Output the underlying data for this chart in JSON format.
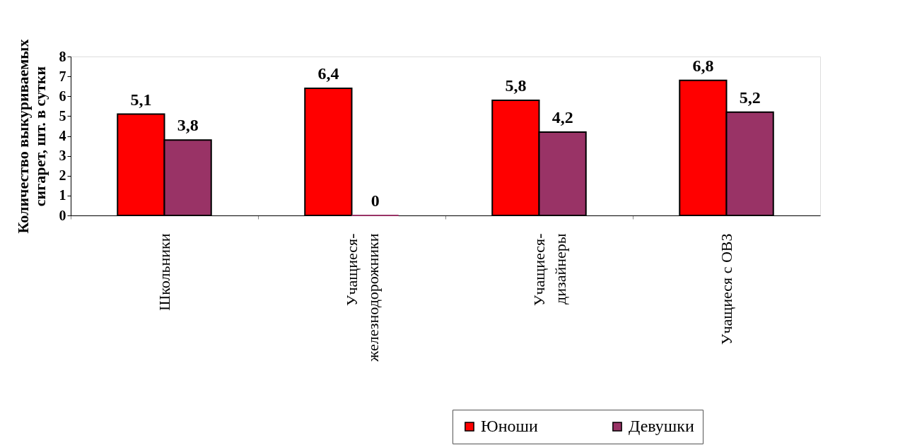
{
  "chart_data": {
    "type": "bar",
    "ylabel": "Количество выкуриваемых сигарет, шт. в сутки",
    "categories": [
      "Школьники",
      "Учащиеся-железнодорожники",
      "Учащиеся-дизайнеры",
      "Учащиеся с ОВЗ"
    ],
    "series": [
      {
        "name": "Юноши",
        "color": "#ff0000",
        "values": [
          5.1,
          6.4,
          5.8,
          6.8
        ],
        "value_labels": [
          "5,1",
          "6,4",
          "5,8",
          "6,8"
        ]
      },
      {
        "name": "Девушки",
        "color": "#993366",
        "values": [
          3.8,
          0,
          4.2,
          5.2
        ],
        "value_labels": [
          "3,8",
          "0",
          "4,2",
          "5,2"
        ]
      }
    ],
    "ylim": [
      0,
      8
    ],
    "yticks": [
      0,
      1,
      2,
      3,
      4,
      5,
      6,
      7,
      8
    ],
    "data_labels": true,
    "grid": false,
    "legend": "bottom right"
  }
}
